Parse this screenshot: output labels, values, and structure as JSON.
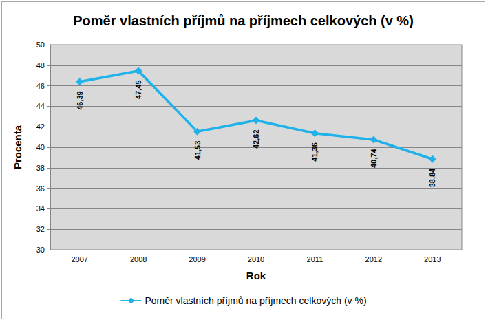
{
  "chart_data": {
    "type": "line",
    "title": "Poměr vlastních příjmů na příjmech celkových (v %)",
    "x_label": "Rok",
    "y_label": "Procenta",
    "categories": [
      "2007",
      "2008",
      "2009",
      "2010",
      "2011",
      "2012",
      "2013"
    ],
    "series": [
      {
        "name": "Poměr vlastních příjmů na příjmech celkových (v %)",
        "color": "#1eb1ea",
        "marker": "diamond",
        "values": [
          46.39,
          47.45,
          41.53,
          42.62,
          41.36,
          40.74,
          38.84
        ],
        "value_labels": [
          "46,39",
          "47,45",
          "41,53",
          "42,62",
          "41,36",
          "40,74",
          "38,84"
        ]
      }
    ],
    "ylim": [
      30,
      50
    ],
    "yticks": [
      30,
      32,
      34,
      36,
      38,
      40,
      42,
      44,
      46,
      48,
      50
    ],
    "grid": true,
    "legend": "bottom",
    "data_labels": true
  }
}
